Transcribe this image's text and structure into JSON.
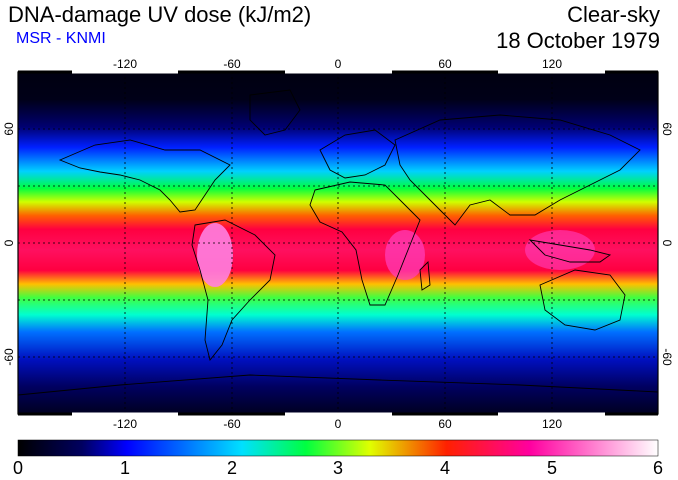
{
  "header": {
    "title": "DNA-damage UV dose (kJ/m2)",
    "subtitle": "MSR - KNMI",
    "product": "Clear-sky",
    "date": "18 October 1979"
  },
  "map": {
    "lon_ticks": [
      "-120",
      "-60",
      "0",
      "60",
      "120"
    ],
    "lat_ticks": [
      "60",
      "0",
      "-60"
    ],
    "colors": {
      "polar": "#000010",
      "low": "#0000c8",
      "mid_low": "#00e0ff",
      "mid": "#00e000",
      "mid_high": "#ffe000",
      "high": "#ff0040",
      "peak": "#ff40c0",
      "max": "#ffffff"
    }
  },
  "colorbar": {
    "labels": [
      "0",
      "1",
      "2",
      "3",
      "4",
      "5",
      "6"
    ],
    "stops": [
      "#000000",
      "#000090",
      "#0000ff",
      "#00e0ff",
      "#00ff40",
      "#e0ff00",
      "#ffa000",
      "#ff0000",
      "#ff00a0",
      "#ffffff"
    ]
  }
}
